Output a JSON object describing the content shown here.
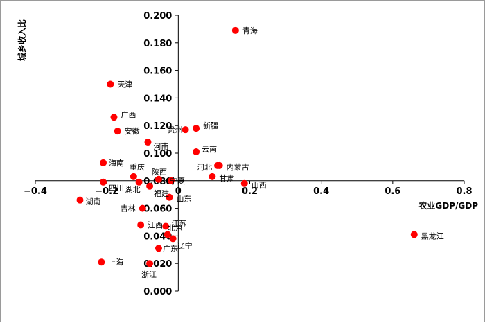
{
  "chart_data": {
    "type": "scatter",
    "xlabel": "农业GDP/GDP",
    "ylabel": "城乡收入比",
    "xlim": [
      -0.4,
      0.8
    ],
    "ylim": [
      0.0,
      0.2
    ],
    "x_ticks": [
      -0.4,
      -0.2,
      0,
      0.2,
      0.4,
      0.6,
      0.8
    ],
    "y_ticks": [
      0.0,
      0.02,
      0.04,
      0.06,
      0.08,
      0.1,
      0.12,
      0.14,
      0.16,
      0.18,
      0.2
    ],
    "x_tick_labels": [
      "−0.4",
      "−0.2",
      "0",
      "0.2",
      "0.4",
      "0.6",
      "0.8"
    ],
    "y_tick_labels": [
      "0.000",
      "0.020",
      "0.040",
      "0.060",
      "0.080",
      "0.100",
      "0.120",
      "0.140",
      "0.160",
      "0.180",
      "0.200"
    ],
    "grid": false,
    "marker_color": "#ff0000",
    "points": [
      {
        "name": "青海",
        "x": 0.16,
        "y": 0.189
      },
      {
        "name": "天津",
        "x": -0.19,
        "y": 0.15
      },
      {
        "name": "广西",
        "x": -0.18,
        "y": 0.126
      },
      {
        "name": "安徽",
        "x": -0.17,
        "y": 0.116
      },
      {
        "name": "贵州",
        "x": 0.02,
        "y": 0.117
      },
      {
        "name": "新疆",
        "x": 0.05,
        "y": 0.118
      },
      {
        "name": "河南",
        "x": -0.085,
        "y": 0.108
      },
      {
        "name": "云南",
        "x": 0.05,
        "y": 0.101
      },
      {
        "name": "海南",
        "x": -0.21,
        "y": 0.093
      },
      {
        "name": "河北",
        "x": 0.11,
        "y": 0.091
      },
      {
        "name": "内蒙古",
        "x": 0.115,
        "y": 0.091
      },
      {
        "name": "重庆",
        "x": -0.125,
        "y": 0.083
      },
      {
        "name": "陕西",
        "x": -0.055,
        "y": 0.081
      },
      {
        "name": "宁夏",
        "x": -0.02,
        "y": 0.08
      },
      {
        "name": "甘肃",
        "x": 0.095,
        "y": 0.083
      },
      {
        "name": "四川",
        "x": -0.21,
        "y": 0.079
      },
      {
        "name": "湖北",
        "x": -0.11,
        "y": 0.079
      },
      {
        "name": "福建",
        "x": -0.08,
        "y": 0.076
      },
      {
        "name": "山西",
        "x": 0.185,
        "y": 0.078
      },
      {
        "name": "山东",
        "x": -0.025,
        "y": 0.068
      },
      {
        "name": "湖南",
        "x": -0.275,
        "y": 0.066
      },
      {
        "name": "吉林",
        "x": -0.1,
        "y": 0.06
      },
      {
        "name": "江西",
        "x": -0.105,
        "y": 0.048
      },
      {
        "name": "江苏",
        "x": -0.035,
        "y": 0.047
      },
      {
        "name": "北京",
        "x": -0.03,
        "y": 0.041
      },
      {
        "name": "黑龙江",
        "x": 0.66,
        "y": 0.041
      },
      {
        "name": "辽宁",
        "x": -0.015,
        "y": 0.038
      },
      {
        "name": "广东",
        "x": -0.055,
        "y": 0.031
      },
      {
        "name": "上海",
        "x": -0.215,
        "y": 0.021
      },
      {
        "name": "浙江",
        "x": -0.08,
        "y": 0.02
      }
    ]
  }
}
